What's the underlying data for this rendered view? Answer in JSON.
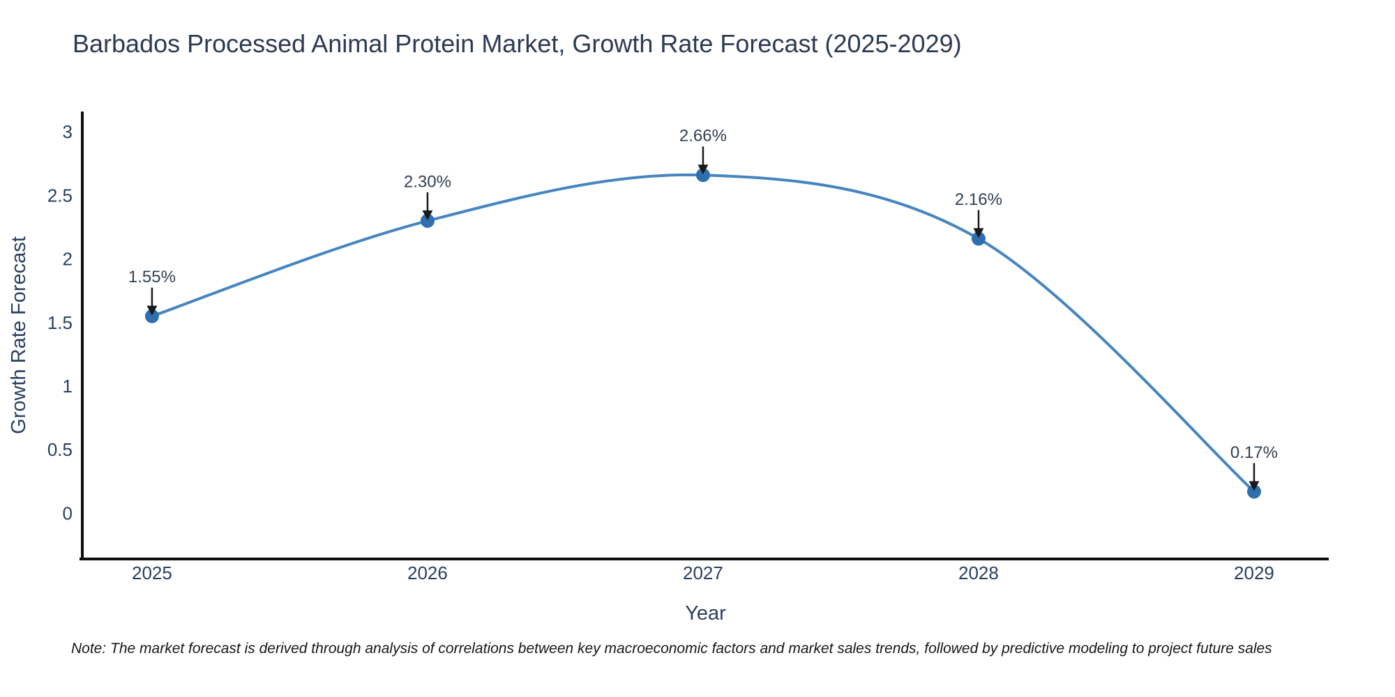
{
  "chart_data": {
    "type": "line",
    "title": "Barbados Processed Animal Protein Market, Growth Rate Forecast (2025-2029)",
    "xlabel": "Year",
    "ylabel": "Growth Rate Forecast",
    "x": [
      2025,
      2026,
      2027,
      2028,
      2029
    ],
    "categories": [
      "2025",
      "2026",
      "2027",
      "2028",
      "2029"
    ],
    "series": [
      {
        "name": "Growth Rate Forecast",
        "values": [
          1.55,
          2.3,
          2.66,
          2.16,
          0.17
        ]
      }
    ],
    "point_labels": [
      "1.55%",
      "2.30%",
      "2.66%",
      "2.16%",
      "0.17%"
    ],
    "line_shape": "spline",
    "markers": true,
    "grid": false,
    "legend": null,
    "xlim": [
      2024.747,
      2029.271
    ],
    "ylim": [
      -0.36,
      3.16
    ],
    "yticks": [
      0,
      0.5,
      1,
      1.5,
      2,
      2.5,
      3
    ],
    "xticks": [
      "2025",
      "2026",
      "2027",
      "2028",
      "2029"
    ],
    "colors": {
      "line": "#4685bf",
      "marker": "#2f6fad",
      "axis": "#0d0d0d",
      "text": "#2a3f5f",
      "annotation_text": "#33404f",
      "annotation_arrow": "#1a1a1a",
      "background": "#ffffff"
    }
  },
  "footnote": "Note: The market forecast is derived through analysis of correlations between key macroeconomic factors and market sales trends, followed by predictive modeling to project future sales"
}
